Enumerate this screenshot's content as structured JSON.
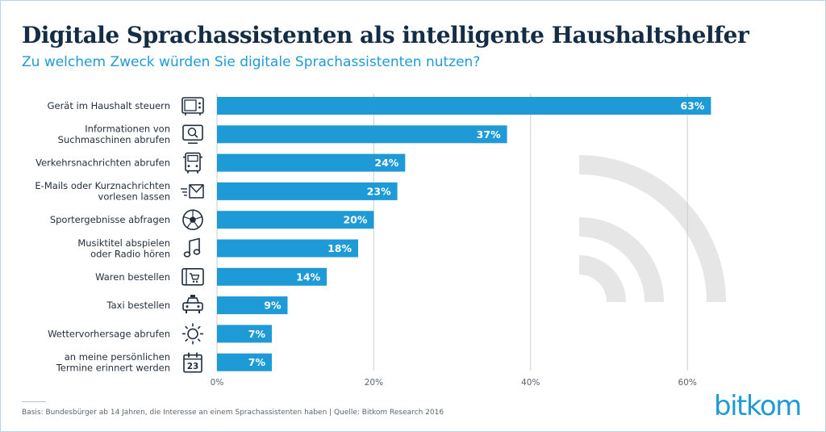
{
  "header": {
    "title": "Digitale Sprachassistenten als intelligente Haushaltshelfer",
    "subtitle": "Zu welchem Zweck würden Sie digitale Sprachassistenten nutzen?"
  },
  "colors": {
    "bar": "#1e9bd7",
    "title": "#152c45",
    "accent": "#1e9bd7",
    "watermark": "#e6e6e6"
  },
  "chart_data": {
    "type": "bar",
    "orientation": "horizontal",
    "categories": [
      "Gerät im Haushalt steuern",
      "Informationen von\nSuchmaschinen abrufen",
      "Verkehrsnachrichten abrufen",
      "E-Mails oder Kurznachrichten\nvorlesen lassen",
      "Sportergebnisse abfragen",
      "Musiktitel abspielen\noder Radio hören",
      "Waren bestellen",
      "Taxi bestellen",
      "Wettervorhersage abrufen",
      "an meine persönlichen\nTermine erinnert werden"
    ],
    "values": [
      63,
      37,
      24,
      23,
      20,
      18,
      14,
      9,
      7,
      7
    ],
    "value_labels": [
      "63%",
      "37%",
      "24%",
      "23%",
      "20%",
      "18%",
      "14%",
      "9%",
      "7%",
      "7%"
    ],
    "icons": [
      "microwave-icon",
      "search-screen-icon",
      "truck-icon",
      "mail-icon",
      "football-icon",
      "music-note-icon",
      "shopping-cart-icon",
      "taxi-icon",
      "sun-icon",
      "calendar-icon"
    ],
    "calendar_day": "23",
    "xlim": [
      0,
      70
    ],
    "x_ticks": [
      0,
      20,
      40,
      60
    ],
    "x_tick_labels": [
      "0%",
      "20%",
      "40%",
      "60%"
    ],
    "grid": true
  },
  "footer": {
    "footnote": "Basis: Bundesbürger ab 14 Jahren, die Interesse an einem Sprachassistenten haben | Quelle: Bitkom Research 2016",
    "logo": "bitkom"
  }
}
